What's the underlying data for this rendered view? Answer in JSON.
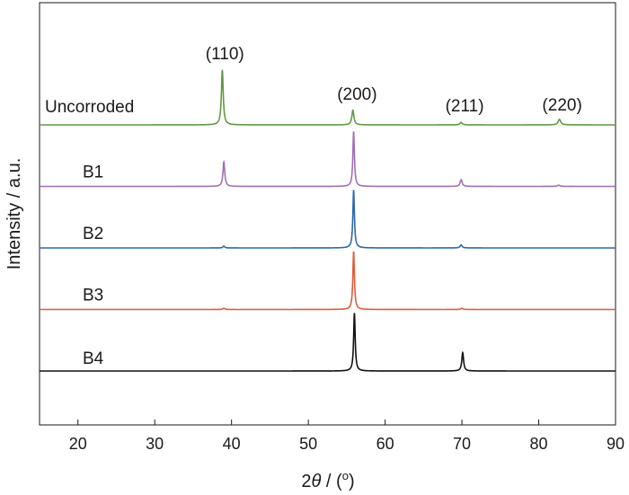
{
  "chart_data": {
    "type": "line",
    "title": "",
    "xlabel_prefix": "2",
    "xlabel_theta": "θ",
    "xlabel_suffix": " / (",
    "xlabel_unit": "o",
    "xlabel_close": ")",
    "ylabel": "Intensity / a.u.",
    "xlim": [
      15,
      90
    ],
    "xticks": [
      20,
      30,
      40,
      50,
      60,
      70,
      80,
      90
    ],
    "grid": false,
    "legend": "none",
    "peak_annotations": [
      {
        "label": "(110)",
        "x": 38.9
      },
      {
        "label": "(200)",
        "x": 56.0
      },
      {
        "label": "(211)",
        "x": 70.0
      },
      {
        "label": "(220)",
        "x": 82.7
      }
    ],
    "series": [
      {
        "name": "Uncorroded",
        "color": "#5c9a47",
        "baseline": 5.0,
        "peaks": [
          {
            "x": 38.8,
            "h": 0.9,
            "w": 0.14
          },
          {
            "x": 55.8,
            "h": 0.24,
            "w": 0.16
          },
          {
            "x": 69.9,
            "h": 0.04,
            "w": 0.18
          },
          {
            "x": 82.7,
            "h": 0.09,
            "w": 0.2
          }
        ]
      },
      {
        "name": "B1",
        "color": "#a06fb8",
        "baseline": 4.0,
        "peaks": [
          {
            "x": 39.0,
            "h": 0.4,
            "w": 0.14
          },
          {
            "x": 55.9,
            "h": 0.9,
            "w": 0.12
          },
          {
            "x": 69.9,
            "h": 0.11,
            "w": 0.16
          },
          {
            "x": 82.6,
            "h": 0.02,
            "w": 0.2
          }
        ]
      },
      {
        "name": "B2",
        "color": "#2f68ad",
        "baseline": 3.0,
        "peaks": [
          {
            "x": 39.0,
            "h": 0.03,
            "w": 0.14
          },
          {
            "x": 55.9,
            "h": 0.95,
            "w": 0.12
          },
          {
            "x": 69.9,
            "h": 0.05,
            "w": 0.16
          }
        ]
      },
      {
        "name": "B3",
        "color": "#e05b3a",
        "baseline": 2.0,
        "peaks": [
          {
            "x": 39.0,
            "h": 0.02,
            "w": 0.14
          },
          {
            "x": 55.9,
            "h": 0.95,
            "w": 0.12
          },
          {
            "x": 70.0,
            "h": 0.02,
            "w": 0.16
          }
        ]
      },
      {
        "name": "B4",
        "color": "#111111",
        "baseline": 1.0,
        "peaks": [
          {
            "x": 56.0,
            "h": 0.95,
            "w": 0.12
          },
          {
            "x": 70.1,
            "h": 0.3,
            "w": 0.14
          }
        ]
      }
    ]
  }
}
